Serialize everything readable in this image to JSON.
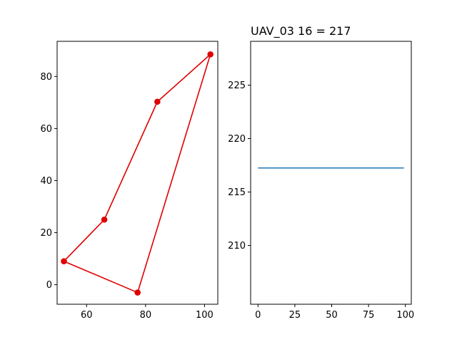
{
  "chart_data": [
    {
      "type": "line",
      "title": "",
      "xlabel": "",
      "ylabel": "",
      "xlim": [
        50.0,
        104.5
      ],
      "ylim": [
        -7.5,
        93.5
      ],
      "xticks": [
        60,
        80,
        100
      ],
      "yticks": [
        0,
        20,
        40,
        60,
        80
      ],
      "grid": false,
      "series": [
        {
          "color": "#e00000",
          "marker": "circle",
          "points": [
            {
              "x": 66,
              "y": 25
            },
            {
              "x": 52.3,
              "y": 9
            },
            {
              "x": 77.3,
              "y": -3
            },
            {
              "x": 102,
              "y": 88.5
            },
            {
              "x": 84,
              "y": 70.3
            },
            {
              "x": 66,
              "y": 25
            }
          ]
        }
      ]
    },
    {
      "type": "line",
      "title": "UAV_03 16 = 217",
      "xlabel": "",
      "ylabel": "",
      "xlim": [
        -5,
        104
      ],
      "ylim": [
        204.5,
        229.1
      ],
      "xticks": [
        0,
        25,
        50,
        75,
        100
      ],
      "yticks": [
        210,
        215,
        220,
        225
      ],
      "grid": false,
      "series": [
        {
          "color": "#1f77b4",
          "points": [
            {
              "x": 0,
              "y": 217.25
            },
            {
              "x": 99,
              "y": 217.25
            }
          ]
        }
      ]
    }
  ]
}
